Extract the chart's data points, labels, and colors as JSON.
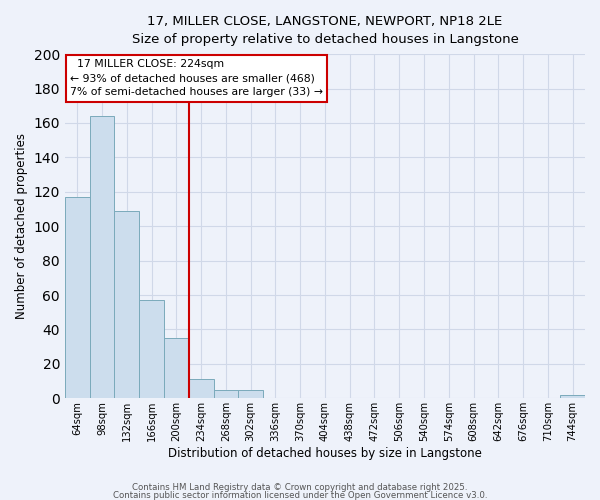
{
  "title_line1": "17, MILLER CLOSE, LANGSTONE, NEWPORT, NP18 2LE",
  "title_line2": "Size of property relative to detached houses in Langstone",
  "xlabel": "Distribution of detached houses by size in Langstone",
  "ylabel": "Number of detached properties",
  "bar_labels": [
    "64sqm",
    "98sqm",
    "132sqm",
    "166sqm",
    "200sqm",
    "234sqm",
    "268sqm",
    "302sqm",
    "336sqm",
    "370sqm",
    "404sqm",
    "438sqm",
    "472sqm",
    "506sqm",
    "540sqm",
    "574sqm",
    "608sqm",
    "642sqm",
    "676sqm",
    "710sqm",
    "744sqm"
  ],
  "bar_heights": [
    117,
    164,
    109,
    57,
    35,
    11,
    5,
    5,
    0,
    0,
    0,
    0,
    0,
    0,
    0,
    0,
    0,
    0,
    0,
    0,
    2
  ],
  "bar_color": "#ccdded",
  "bar_edge_color": "#7aaabb",
  "background_color": "#eef2fa",
  "grid_color": "#d0d8e8",
  "annotation_title": "17 MILLER CLOSE: 224sqm",
  "annotation_line1": "← 93% of detached houses are smaller (468)",
  "annotation_line2": "7% of semi-detached houses are larger (33) →",
  "vline_color": "#cc0000",
  "annotation_box_color": "#ffffff",
  "annotation_box_edge": "#cc0000",
  "ylim": [
    0,
    200
  ],
  "yticks": [
    0,
    20,
    40,
    60,
    80,
    100,
    120,
    140,
    160,
    180,
    200
  ],
  "footer_line1": "Contains HM Land Registry data © Crown copyright and database right 2025.",
  "footer_line2": "Contains public sector information licensed under the Open Government Licence v3.0."
}
